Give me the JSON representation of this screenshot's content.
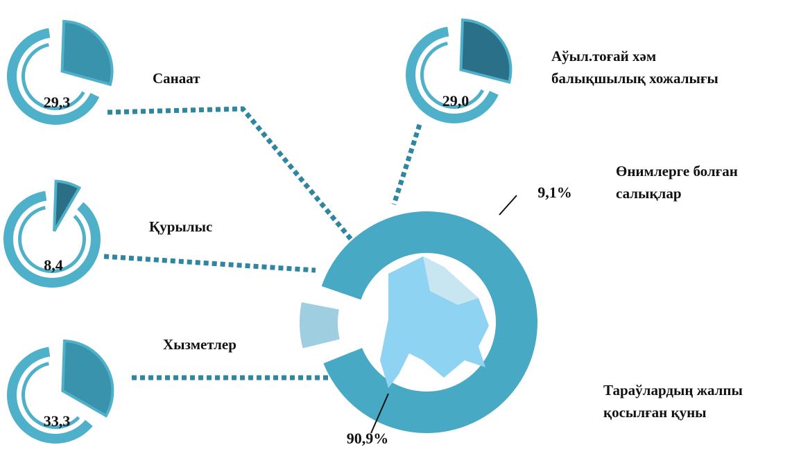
{
  "chart_data": [
    {
      "type": "donut",
      "categories": [
        "Тараўлардың  жалпы\nқосылған қуны",
        "Өнимлерге болған\nсалықлар"
      ],
      "values": [
        90.9,
        9.1
      ],
      "value_labels": [
        "90,9%",
        "9,1%"
      ],
      "colors": [
        "#47a9c4",
        "#9ecee0"
      ]
    },
    {
      "type": "pie",
      "categories": [
        "Санаат",
        "Аўыл.тоғай хәм\nбалықшылық хожалығы",
        "Қурылыс",
        "Хызметлер"
      ],
      "values": [
        29.3,
        29.0,
        8.4,
        33.3
      ],
      "value_labels": [
        "29,3",
        "29,0",
        "8,4",
        "33,3"
      ],
      "colors": [
        "#3a93ad",
        "#2b7089",
        "#2b6f86",
        "#3a93ad"
      ],
      "ring_color": "#4fb0c9"
    }
  ]
}
